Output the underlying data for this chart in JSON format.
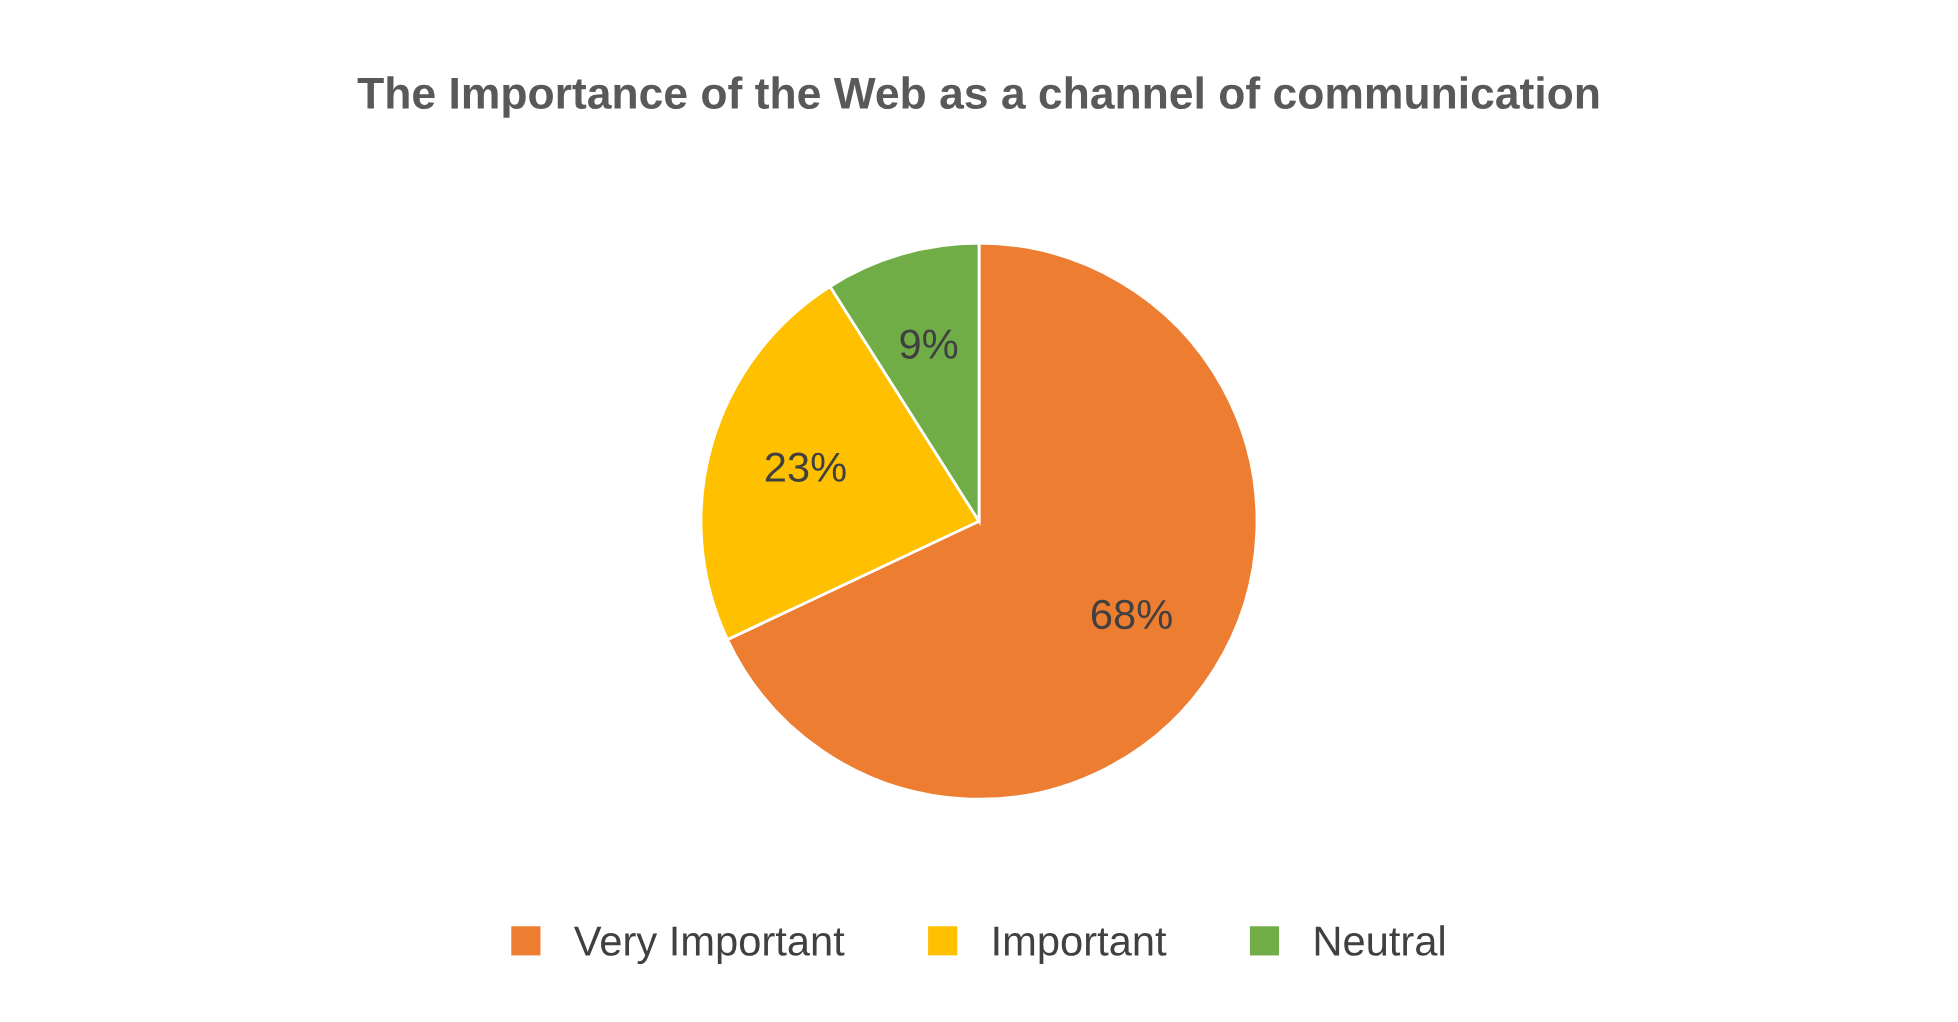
{
  "chart_data": {
    "type": "pie",
    "title": "The Importance of the Web as a channel of communication",
    "categories": [
      "Very Important",
      "Important",
      "Neutral"
    ],
    "values": [
      68,
      23,
      9
    ],
    "colors": [
      "#ed7d31",
      "#ffc000",
      "#70ad47"
    ],
    "value_labels": [
      "68%",
      "23%",
      "9%"
    ],
    "legend": "bottom"
  }
}
